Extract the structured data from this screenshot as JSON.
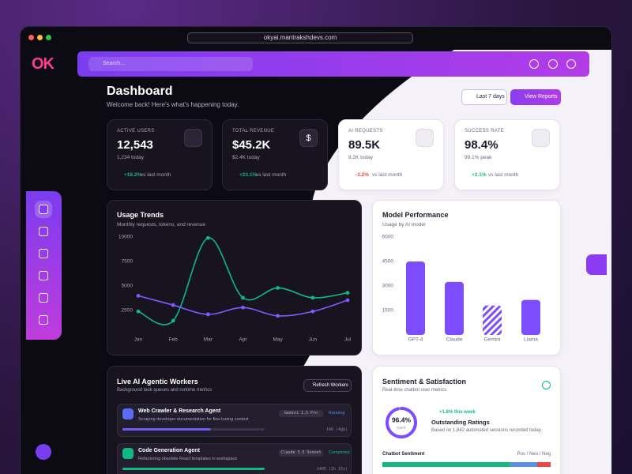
{
  "browser": {
    "url": "okyai.mantrakshdevs.com"
  },
  "logo": "OK",
  "search_placeholder": "Search...",
  "header": {
    "title": "Dashboard",
    "subtitle": "Welcome back! Here's what's happening today.",
    "range_button": "Last 7 days",
    "reports_button": "View Reports"
  },
  "stats": [
    {
      "label": "ACTIVE USERS",
      "value": "12,543",
      "sub": "1,234 today",
      "change": "+18.2%",
      "note": "vs last month"
    },
    {
      "label": "TOTAL REVENUE",
      "value": "$45.2K",
      "sub": "$2.4K today",
      "change": "+23.1%",
      "note": "vs last month",
      "icon": "$"
    },
    {
      "label": "AI REQUESTS",
      "value": "89.5K",
      "sub": "8.2K today",
      "change": "-3.2%",
      "note": "vs last month"
    },
    {
      "label": "SUCCESS RATE",
      "value": "98.4%",
      "sub": "99.1% peak",
      "change": "+2.1%",
      "note": "vs last month"
    }
  ],
  "chart_data": [
    {
      "type": "line",
      "title": "Usage Trends",
      "subtitle": "Monthly requests, tokens, and revenue",
      "categories": [
        "Jan",
        "Feb",
        "Mar",
        "Apr",
        "May",
        "Jun",
        "Jul"
      ],
      "series": [
        {
          "color": "#10b981",
          "values": [
            2400,
            1450,
            9900,
            3800,
            4800,
            3800,
            4300
          ]
        },
        {
          "color": "#7c5cff",
          "values": [
            4000,
            3050,
            2100,
            2800,
            1950,
            2400,
            3550
          ]
        }
      ],
      "ylim": [
        0,
        10000
      ],
      "yticks": [
        2500,
        5000,
        7500,
        10000
      ]
    },
    {
      "type": "bar",
      "title": "Model Performance",
      "subtitle": "Usage by AI model",
      "categories": [
        "GPT-4",
        "Claude",
        "Gemini",
        "Llama"
      ],
      "values": [
        4500,
        3250,
        1800,
        2150
      ],
      "color": "#7c4dff",
      "hatched": [
        false,
        false,
        true,
        false
      ],
      "ylim": [
        0,
        6000
      ],
      "yticks": [
        1500,
        3000,
        4500,
        6000
      ]
    }
  ],
  "workers": {
    "title": "Live AI Agentic Workers",
    "subtitle": "Background task queues and runtime metrics",
    "refresh_button": "Refresh Workers",
    "agents": [
      {
        "name": "Web Crawler & Research Agent",
        "task": "Scraping developer documentation for fine-tuning context",
        "model": "Gemini 1.5 Pro",
        "status": "Running",
        "progress": 62,
        "metric": "148 (4gb)"
      },
      {
        "name": "Code Generation Agent",
        "task": "Refactoring obsolete React templates in workspace",
        "model": "Claude 3.5 Sonnet",
        "status": "Completed",
        "progress": 100,
        "metric": "2405 (2h 15s)"
      }
    ]
  },
  "sentiment": {
    "title": "Sentiment & Satisfaction",
    "subtitle": "Real-time chatbot user metrics",
    "gauge": {
      "value": 96.4,
      "value_label": "96.4%",
      "caption": "CSAT"
    },
    "trend": "+1.8% this week",
    "headline": "Outstanding Ratings",
    "detail": "Based on 1,842 automated sessions recorded today.",
    "bar_title": "Chatbot Sentiment",
    "bar_legend": "Pos / Neu / Neg",
    "segments": [
      {
        "color": "#10b981",
        "value": 76
      },
      {
        "color": "#5b8def",
        "value": 16
      },
      {
        "color": "#ef4444",
        "value": 8
      }
    ]
  }
}
